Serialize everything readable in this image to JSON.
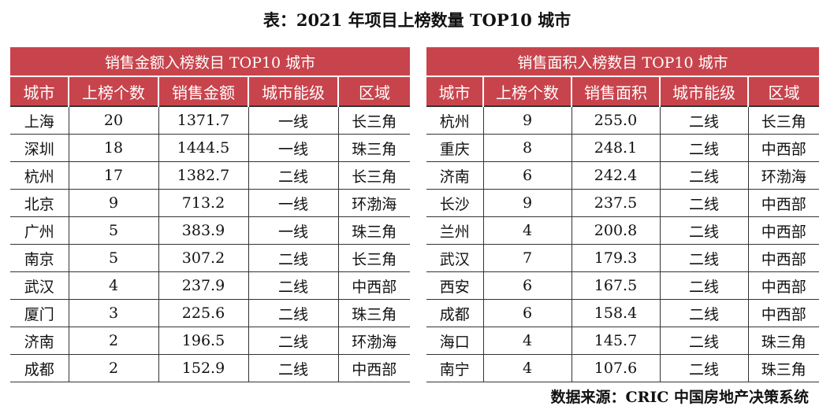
{
  "title": "表：2021 年项目上榜数量 TOP10 城市",
  "left_table": {
    "caption": "销售金额入榜数目 TOP10 城市",
    "headers": [
      "城市",
      "上榜个数",
      "销售金额",
      "城市能级",
      "区域"
    ],
    "rows": [
      [
        "上海",
        "20",
        "1371.7",
        "一线",
        "长三角"
      ],
      [
        "深圳",
        "18",
        "1444.5",
        "一线",
        "珠三角"
      ],
      [
        "杭州",
        "17",
        "1382.7",
        "二线",
        "长三角"
      ],
      [
        "北京",
        "9",
        "713.2",
        "一线",
        "环渤海"
      ],
      [
        "广州",
        "5",
        "383.9",
        "一线",
        "珠三角"
      ],
      [
        "南京",
        "5",
        "307.2",
        "二线",
        "长三角"
      ],
      [
        "武汉",
        "4",
        "237.9",
        "二线",
        "中西部"
      ],
      [
        "厦门",
        "3",
        "225.6",
        "二线",
        "珠三角"
      ],
      [
        "济南",
        "2",
        "196.5",
        "二线",
        "环渤海"
      ],
      [
        "成都",
        "2",
        "152.9",
        "二线",
        "中西部"
      ]
    ]
  },
  "right_table": {
    "caption": "销售面积入榜数目 TOP10 城市",
    "headers": [
      "城市",
      "上榜个数",
      "销售面积",
      "城市能级",
      "区域"
    ],
    "rows": [
      [
        "杭州",
        "9",
        "255.0",
        "二线",
        "长三角"
      ],
      [
        "重庆",
        "8",
        "248.1",
        "二线",
        "中西部"
      ],
      [
        "济南",
        "6",
        "242.4",
        "二线",
        "环渤海"
      ],
      [
        "长沙",
        "9",
        "237.5",
        "二线",
        "中西部"
      ],
      [
        "兰州",
        "4",
        "200.8",
        "二线",
        "中西部"
      ],
      [
        "武汉",
        "7",
        "179.3",
        "二线",
        "中西部"
      ],
      [
        "西安",
        "6",
        "167.5",
        "二线",
        "中西部"
      ],
      [
        "成都",
        "6",
        "158.4",
        "二线",
        "中西部"
      ],
      [
        "海口",
        "4",
        "145.7",
        "二线",
        "珠三角"
      ],
      [
        "南宁",
        "4",
        "107.6",
        "二线",
        "珠三角"
      ]
    ]
  },
  "source": "数据来源：CRIC 中国房地产决策系统",
  "colors": {
    "header_bg": "#c8444c",
    "header_text": "#ffffff",
    "rule": "#333333"
  }
}
